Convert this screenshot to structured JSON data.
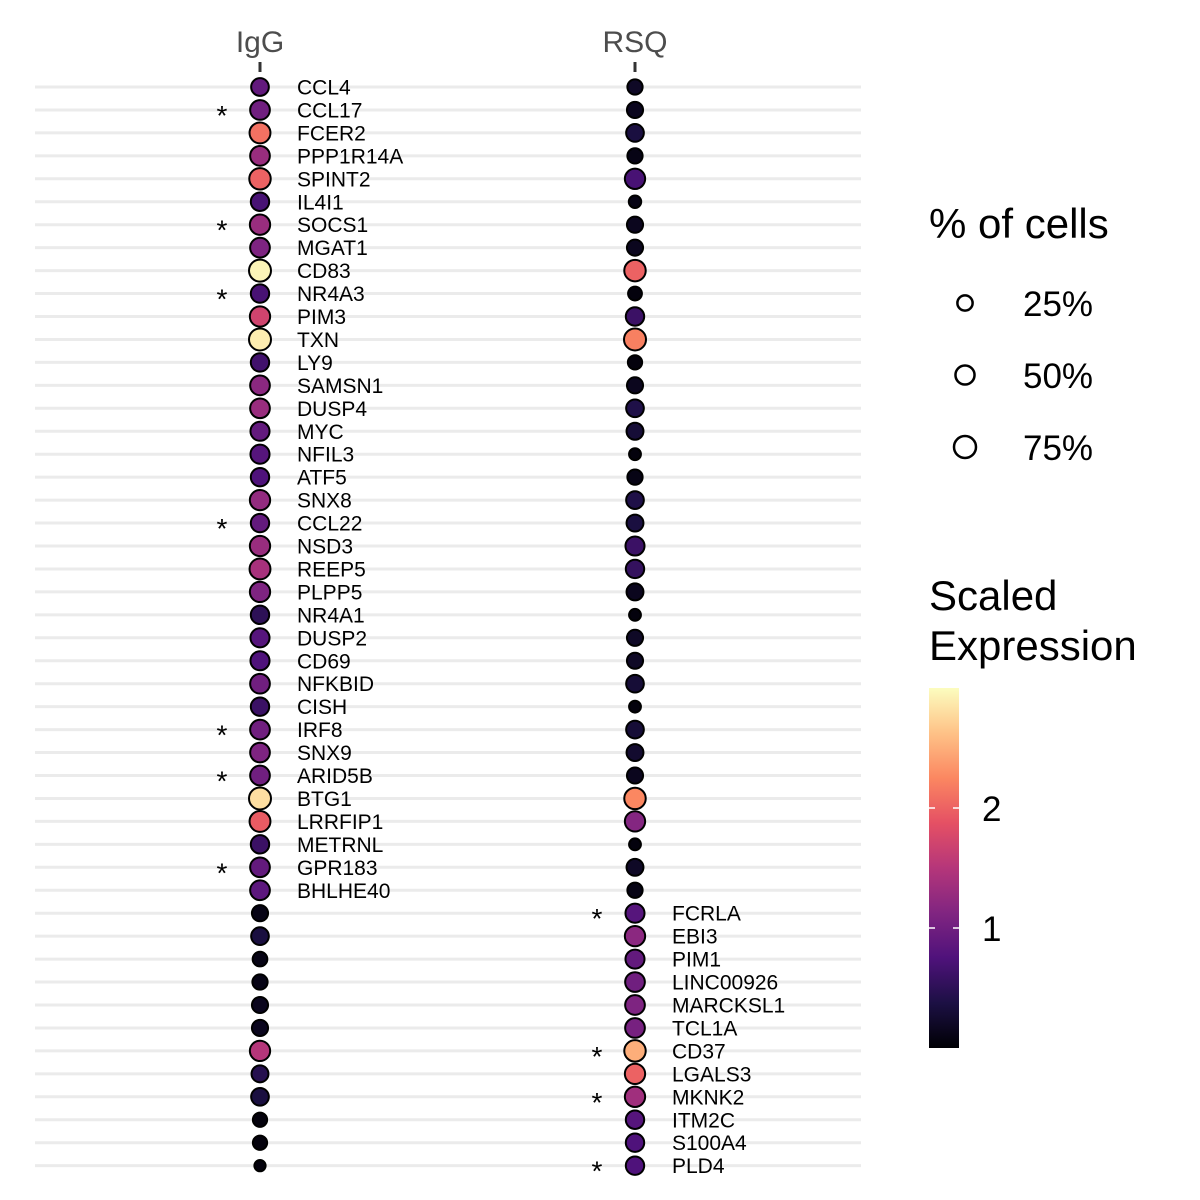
{
  "chart_data": {
    "type": "dotplot",
    "columns": [
      "IgG",
      "RSQ"
    ],
    "rows": [
      {
        "gene": "CCL4",
        "label_col": "IgG",
        "star": false,
        "IgG": {
          "pct": 40,
          "expr": 0.9
        },
        "RSQ": {
          "pct": 25,
          "expr": 0.2
        }
      },
      {
        "gene": "CCL17",
        "label_col": "IgG",
        "star": true,
        "IgG": {
          "pct": 55,
          "expr": 1.0
        },
        "RSQ": {
          "pct": 30,
          "expr": 0.15
        }
      },
      {
        "gene": "FCER2",
        "label_col": "IgG",
        "star": false,
        "IgG": {
          "pct": 65,
          "expr": 2.1
        },
        "RSQ": {
          "pct": 40,
          "expr": 0.35
        }
      },
      {
        "gene": "PPP1R14A",
        "label_col": "IgG",
        "star": false,
        "IgG": {
          "pct": 55,
          "expr": 1.3
        },
        "RSQ": {
          "pct": 25,
          "expr": 0.1
        }
      },
      {
        "gene": "SPINT2",
        "label_col": "IgG",
        "star": false,
        "IgG": {
          "pct": 70,
          "expr": 2.0
        },
        "RSQ": {
          "pct": 60,
          "expr": 0.7
        }
      },
      {
        "gene": "IL4I1",
        "label_col": "IgG",
        "star": false,
        "IgG": {
          "pct": 45,
          "expr": 0.7
        },
        "RSQ": {
          "pct": 12,
          "expr": 0.1
        }
      },
      {
        "gene": "SOCS1",
        "label_col": "IgG",
        "star": true,
        "IgG": {
          "pct": 60,
          "expr": 1.3
        },
        "RSQ": {
          "pct": 30,
          "expr": 0.15
        }
      },
      {
        "gene": "MGAT1",
        "label_col": "IgG",
        "star": false,
        "IgG": {
          "pct": 55,
          "expr": 1.1
        },
        "RSQ": {
          "pct": 30,
          "expr": 0.15
        }
      },
      {
        "gene": "CD83",
        "label_col": "IgG",
        "star": false,
        "IgG": {
          "pct": 75,
          "expr": 2.95
        },
        "RSQ": {
          "pct": 70,
          "expr": 2.0
        }
      },
      {
        "gene": "NR4A3",
        "label_col": "IgG",
        "star": true,
        "IgG": {
          "pct": 45,
          "expr": 0.7
        },
        "RSQ": {
          "pct": 18,
          "expr": 0.05
        }
      },
      {
        "gene": "PIM3",
        "label_col": "IgG",
        "star": false,
        "IgG": {
          "pct": 60,
          "expr": 1.7
        },
        "RSQ": {
          "pct": 45,
          "expr": 0.6
        }
      },
      {
        "gene": "TXN",
        "label_col": "IgG",
        "star": false,
        "IgG": {
          "pct": 75,
          "expr": 2.9
        },
        "RSQ": {
          "pct": 75,
          "expr": 2.2
        }
      },
      {
        "gene": "LY9",
        "label_col": "IgG",
        "star": false,
        "IgG": {
          "pct": 45,
          "expr": 0.65
        },
        "RSQ": {
          "pct": 20,
          "expr": 0.05
        }
      },
      {
        "gene": "SAMSN1",
        "label_col": "IgG",
        "star": false,
        "IgG": {
          "pct": 55,
          "expr": 1.2
        },
        "RSQ": {
          "pct": 30,
          "expr": 0.15
        }
      },
      {
        "gene": "DUSP4",
        "label_col": "IgG",
        "star": false,
        "IgG": {
          "pct": 55,
          "expr": 1.3
        },
        "RSQ": {
          "pct": 40,
          "expr": 0.4
        }
      },
      {
        "gene": "MYC",
        "label_col": "IgG",
        "star": false,
        "IgG": {
          "pct": 50,
          "expr": 0.9
        },
        "RSQ": {
          "pct": 35,
          "expr": 0.3
        }
      },
      {
        "gene": "NFIL3",
        "label_col": "IgG",
        "star": false,
        "IgG": {
          "pct": 50,
          "expr": 0.8
        },
        "RSQ": {
          "pct": 10,
          "expr": 0.05
        }
      },
      {
        "gene": "ATF5",
        "label_col": "IgG",
        "star": false,
        "IgG": {
          "pct": 45,
          "expr": 0.75
        },
        "RSQ": {
          "pct": 25,
          "expr": 0.1
        }
      },
      {
        "gene": "SNX8",
        "label_col": "IgG",
        "star": false,
        "IgG": {
          "pct": 60,
          "expr": 1.25
        },
        "RSQ": {
          "pct": 40,
          "expr": 0.4
        }
      },
      {
        "gene": "CCL22",
        "label_col": "IgG",
        "star": true,
        "IgG": {
          "pct": 45,
          "expr": 0.9
        },
        "RSQ": {
          "pct": 35,
          "expr": 0.35
        }
      },
      {
        "gene": "NSD3",
        "label_col": "IgG",
        "star": false,
        "IgG": {
          "pct": 60,
          "expr": 1.3
        },
        "RSQ": {
          "pct": 50,
          "expr": 0.6
        }
      },
      {
        "gene": "REEP5",
        "label_col": "IgG",
        "star": false,
        "IgG": {
          "pct": 65,
          "expr": 1.4
        },
        "RSQ": {
          "pct": 45,
          "expr": 0.55
        }
      },
      {
        "gene": "PLPP5",
        "label_col": "IgG",
        "star": false,
        "IgG": {
          "pct": 60,
          "expr": 1.1
        },
        "RSQ": {
          "pct": 35,
          "expr": 0.15
        }
      },
      {
        "gene": "NR4A1",
        "label_col": "IgG",
        "star": false,
        "IgG": {
          "pct": 45,
          "expr": 0.5
        },
        "RSQ": {
          "pct": 10,
          "expr": 0.05
        }
      },
      {
        "gene": "DUSP2",
        "label_col": "IgG",
        "star": false,
        "IgG": {
          "pct": 50,
          "expr": 0.8
        },
        "RSQ": {
          "pct": 30,
          "expr": 0.2
        }
      },
      {
        "gene": "CD69",
        "label_col": "IgG",
        "star": false,
        "IgG": {
          "pct": 50,
          "expr": 0.75
        },
        "RSQ": {
          "pct": 30,
          "expr": 0.2
        }
      },
      {
        "gene": "NFKBID",
        "label_col": "IgG",
        "star": false,
        "IgG": {
          "pct": 55,
          "expr": 1.0
        },
        "RSQ": {
          "pct": 40,
          "expr": 0.3
        }
      },
      {
        "gene": "CISH",
        "label_col": "IgG",
        "star": false,
        "IgG": {
          "pct": 45,
          "expr": 0.6
        },
        "RSQ": {
          "pct": 10,
          "expr": 0.05
        }
      },
      {
        "gene": "IRF8",
        "label_col": "IgG",
        "star": true,
        "IgG": {
          "pct": 55,
          "expr": 1.0
        },
        "RSQ": {
          "pct": 40,
          "expr": 0.3
        }
      },
      {
        "gene": "SNX9",
        "label_col": "IgG",
        "star": false,
        "IgG": {
          "pct": 55,
          "expr": 1.1
        },
        "RSQ": {
          "pct": 35,
          "expr": 0.25
        }
      },
      {
        "gene": "ARID5B",
        "label_col": "IgG",
        "star": true,
        "IgG": {
          "pct": 55,
          "expr": 1.0
        },
        "RSQ": {
          "pct": 30,
          "expr": 0.15
        }
      },
      {
        "gene": "BTG1",
        "label_col": "IgG",
        "star": false,
        "IgG": {
          "pct": 75,
          "expr": 2.8
        },
        "RSQ": {
          "pct": 70,
          "expr": 2.25
        }
      },
      {
        "gene": "LRRFIP1",
        "label_col": "IgG",
        "star": false,
        "IgG": {
          "pct": 65,
          "expr": 1.95
        },
        "RSQ": {
          "pct": 60,
          "expr": 1.15
        }
      },
      {
        "gene": "METRNL",
        "label_col": "IgG",
        "star": false,
        "IgG": {
          "pct": 45,
          "expr": 0.6
        },
        "RSQ": {
          "pct": 10,
          "expr": 0.05
        }
      },
      {
        "gene": "GPR183",
        "label_col": "IgG",
        "star": true,
        "IgG": {
          "pct": 55,
          "expr": 0.9
        },
        "RSQ": {
          "pct": 35,
          "expr": 0.2
        }
      },
      {
        "gene": "BHLHE40",
        "label_col": "IgG",
        "star": false,
        "IgG": {
          "pct": 55,
          "expr": 0.85
        },
        "RSQ": {
          "pct": 25,
          "expr": 0.1
        }
      },
      {
        "gene": "FCRLA",
        "label_col": "RSQ",
        "star": true,
        "IgG": {
          "pct": 30,
          "expr": 0.1
        },
        "RSQ": {
          "pct": 50,
          "expr": 0.8
        }
      },
      {
        "gene": "EBI3",
        "label_col": "RSQ",
        "star": false,
        "IgG": {
          "pct": 40,
          "expr": 0.35
        },
        "RSQ": {
          "pct": 60,
          "expr": 1.2
        }
      },
      {
        "gene": "PIM1",
        "label_col": "RSQ",
        "star": false,
        "IgG": {
          "pct": 22,
          "expr": 0.1
        },
        "RSQ": {
          "pct": 50,
          "expr": 0.9
        }
      },
      {
        "gene": "LINC00926",
        "label_col": "RSQ",
        "star": false,
        "IgG": {
          "pct": 25,
          "expr": 0.1
        },
        "RSQ": {
          "pct": 55,
          "expr": 1.0
        }
      },
      {
        "gene": "MARCKSL1",
        "label_col": "RSQ",
        "star": false,
        "IgG": {
          "pct": 30,
          "expr": 0.15
        },
        "RSQ": {
          "pct": 55,
          "expr": 1.1
        }
      },
      {
        "gene": "TCL1A",
        "label_col": "RSQ",
        "star": false,
        "IgG": {
          "pct": 30,
          "expr": 0.15
        },
        "RSQ": {
          "pct": 55,
          "expr": 1.05
        }
      },
      {
        "gene": "CD37",
        "label_col": "RSQ",
        "star": true,
        "IgG": {
          "pct": 60,
          "expr": 1.5
        },
        "RSQ": {
          "pct": 70,
          "expr": 2.5
        }
      },
      {
        "gene": "LGALS3",
        "label_col": "RSQ",
        "star": false,
        "IgG": {
          "pct": 35,
          "expr": 0.45
        },
        "RSQ": {
          "pct": 60,
          "expr": 2.0
        }
      },
      {
        "gene": "MKNK2",
        "label_col": "RSQ",
        "star": true,
        "IgG": {
          "pct": 40,
          "expr": 0.35
        },
        "RSQ": {
          "pct": 60,
          "expr": 1.35
        }
      },
      {
        "gene": "ITM2C",
        "label_col": "RSQ",
        "star": false,
        "IgG": {
          "pct": 20,
          "expr": 0.05
        },
        "RSQ": {
          "pct": 45,
          "expr": 0.8
        }
      },
      {
        "gene": "S100A4",
        "label_col": "RSQ",
        "star": false,
        "IgG": {
          "pct": 20,
          "expr": 0.05
        },
        "RSQ": {
          "pct": 45,
          "expr": 0.75
        }
      },
      {
        "gene": "PLD4",
        "label_col": "RSQ",
        "star": true,
        "IgG": {
          "pct": 8,
          "expr": 0.05
        },
        "RSQ": {
          "pct": 45,
          "expr": 0.75
        }
      }
    ],
    "size_legend": {
      "title": "% of cells",
      "entries": [
        {
          "label": "25%",
          "pct": 25
        },
        {
          "label": "50%",
          "pct": 50
        },
        {
          "label": "75%",
          "pct": 75
        }
      ]
    },
    "color_legend": {
      "title_lines": [
        "Scaled",
        "Expression"
      ],
      "min": 0,
      "max": 3,
      "ticks": [
        {
          "label": "2",
          "value": 2
        },
        {
          "label": "1",
          "value": 1
        }
      ],
      "palette": "magma",
      "stops": [
        "#000004",
        "#1c1044",
        "#4f127b",
        "#812581",
        "#b5367a",
        "#e55064",
        "#fb8761",
        "#fec287",
        "#fcfdbf"
      ]
    },
    "star_label": "*",
    "grid": true
  }
}
